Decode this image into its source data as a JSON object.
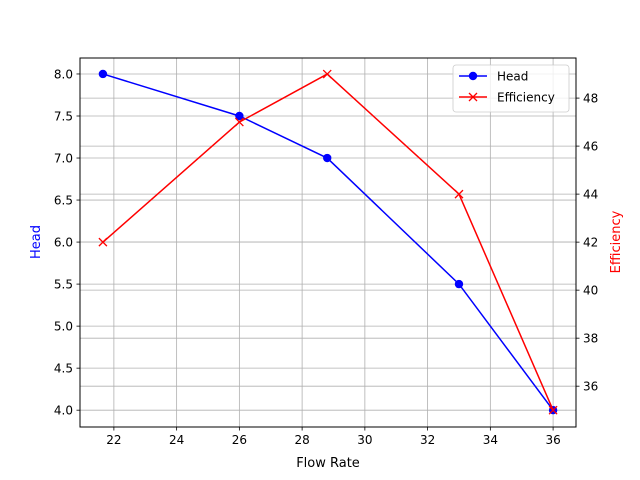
{
  "chart_data": {
    "type": "line",
    "title": "",
    "xlabel": "Flow Rate",
    "xlim": [
      20.92,
      36.73
    ],
    "x_ticks": [
      22,
      24,
      26,
      28,
      30,
      32,
      34,
      36
    ],
    "grid": true,
    "legend_position": "upper right",
    "x": [
      21.65,
      26.0,
      28.8,
      33.0,
      36.0
    ],
    "series": [
      {
        "name": "Head",
        "axis": "left",
        "color": "#0000ff",
        "marker": "circle",
        "values": [
          8.0,
          7.5,
          7.0,
          5.5,
          4.0
        ]
      },
      {
        "name": "Efficiency",
        "axis": "right",
        "color": "#ff0000",
        "marker": "x",
        "values": [
          42,
          47,
          49,
          44,
          35
        ]
      }
    ],
    "y_left": {
      "label": "Head",
      "label_color": "#0000ff",
      "ylim": [
        3.8,
        8.19
      ],
      "ticks": [
        4.0,
        4.5,
        5.0,
        5.5,
        6.0,
        6.5,
        7.0,
        7.5,
        8.0
      ]
    },
    "y_right": {
      "label": "Efficiency",
      "label_color": "#ff0000",
      "ylim": [
        34.3,
        49.67
      ],
      "ticks": [
        36,
        38,
        40,
        42,
        44,
        46,
        48
      ]
    }
  }
}
